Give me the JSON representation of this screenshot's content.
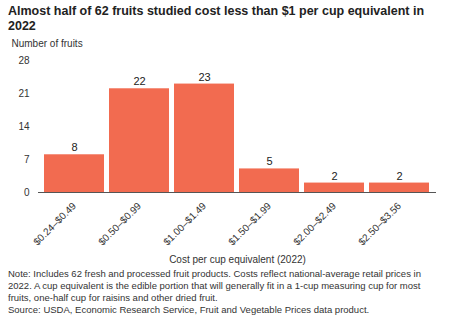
{
  "chart_data": {
    "type": "bar",
    "title": "Almost half of 62 fruits studied cost less than $1 per cup equivalent in 2022",
    "ylabel": "Number of fruits",
    "xlabel": "Cost per cup equivalent (2022)",
    "categories": [
      "$0.24–$0.49",
      "$0.50–$0.99",
      "$1.00–$1.49",
      "$1.50–$1.99",
      "$2.00–$2.49",
      "$2.50–$3.56"
    ],
    "values": [
      8,
      22,
      23,
      5,
      2,
      2
    ],
    "color": "#f26b50",
    "ylim": [
      0,
      28
    ],
    "yticks": [
      0,
      7,
      14,
      21,
      28
    ],
    "grid": false,
    "data_labels": true,
    "note": "Note: Includes 62 fresh and processed fruit products. Costs reflect national-average retail prices in 2022. A cup equivalent is the edible portion that will generally fit in a 1-cup measuring cup for most fruits, one-half cup for raisins and other dried fruit.",
    "source": "Source: USDA, Economic Research Service, Fruit and Vegetable Prices data product."
  }
}
